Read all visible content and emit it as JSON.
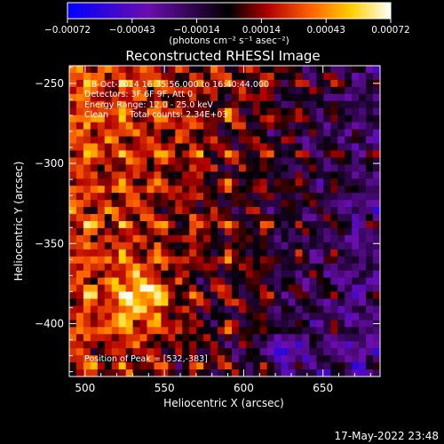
{
  "chart_data": {
    "type": "heatmap",
    "title": "Reconstructed RHESSI Image",
    "xlabel": "Heliocentric X (arcsec)",
    "ylabel": "Heliocentric Y (arcsec)",
    "xlim": [
      490,
      686
    ],
    "ylim": [
      -433,
      -239
    ],
    "xticks": [
      500,
      550,
      600,
      650
    ],
    "yticks": [
      -250,
      -300,
      -350,
      -400
    ],
    "xtick_labels": [
      "500",
      "550",
      "600",
      "650"
    ],
    "ytick_labels": [
      "−250",
      "−300",
      "−350",
      "−400"
    ],
    "colorbar": {
      "range": [
        -0.00072,
        0.00072
      ],
      "tick_labels": [
        "−0.00072",
        "−0.00043",
        "−0.00014",
        "0.00014",
        "0.00043",
        "0.00072"
      ],
      "unit_label": "(photons cm⁻² s⁻¹ asec⁻²)",
      "colors": [
        "#0000ff",
        "#6a0dad",
        "#000000",
        "#b00000",
        "#ff6000",
        "#ffd000",
        "#ffffff"
      ]
    },
    "annotations": {
      "time": "8-Oct-2014 16:35:56.000 to 16:40:44.000",
      "detectors": "Detectors: 3F 6F 9F, Att 0",
      "energy": "Energy Range: 12.0 - 25.0 keV",
      "method": "Clean",
      "counts": "Total counts: 2.34E+03",
      "peak": "Position of Peak = [532,-383]"
    },
    "peak": [
      532,
      -383
    ],
    "footer_timestamp": "17-May-2022 23:48"
  }
}
